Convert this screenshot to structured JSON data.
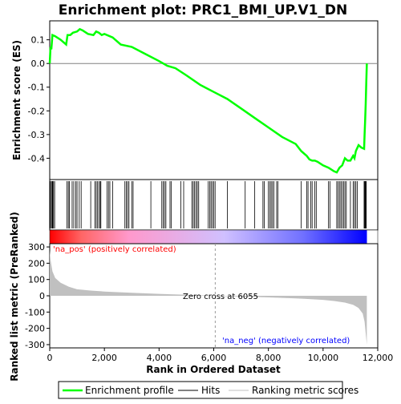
{
  "chart_data": {
    "type": "line",
    "title": "Enrichment plot: PRC1_BMI_UP.V1_DN",
    "xlabel": "Rank in Ordered Dataset",
    "xlim": [
      0,
      12000
    ],
    "x_ticks": [
      0,
      2000,
      4000,
      6000,
      8000,
      10000,
      12000
    ],
    "x_tick_labels": [
      "0",
      "2,000",
      "4,000",
      "6,000",
      "8,000",
      "10,000",
      "12,000"
    ],
    "dataset_size": 11600,
    "es_panel": {
      "ylabel": "Enrichment score (ES)",
      "ylim": [
        -0.49,
        0.18
      ],
      "y_ticks": [
        -0.4,
        -0.3,
        -0.2,
        -0.1,
        0.0,
        0.1
      ],
      "y_tick_labels": [
        "-0.4",
        "-0.3",
        "-0.2",
        "-0.1",
        "0.0",
        "0.1"
      ],
      "series": [
        {
          "name": "Enrichment profile",
          "color": "#00ff00",
          "x": [
            0,
            30,
            60,
            100,
            200,
            400,
            600,
            650,
            750,
            850,
            1000,
            1100,
            1200,
            1400,
            1600,
            1700,
            1800,
            1900,
            2000,
            2300,
            2600,
            3000,
            3500,
            4000,
            4300,
            4600,
            5000,
            5500,
            6000,
            6500,
            7000,
            7500,
            8000,
            8500,
            9000,
            9200,
            9400,
            9500,
            9600,
            9700,
            9800,
            10000,
            10200,
            10400,
            10500,
            10600,
            10700,
            10800,
            10900,
            11000,
            11100,
            11150,
            11200,
            11300,
            11400,
            11500,
            11520,
            11540,
            11560,
            11580,
            11600
          ],
          "y": [
            0.0,
            0.07,
            0.06,
            0.12,
            0.115,
            0.1,
            0.08,
            0.12,
            0.12,
            0.13,
            0.135,
            0.145,
            0.14,
            0.125,
            0.12,
            0.135,
            0.13,
            0.12,
            0.125,
            0.11,
            0.08,
            0.07,
            0.04,
            0.01,
            -0.01,
            -0.02,
            -0.05,
            -0.09,
            -0.12,
            -0.15,
            -0.19,
            -0.23,
            -0.27,
            -0.31,
            -0.34,
            -0.37,
            -0.39,
            -0.405,
            -0.41,
            -0.41,
            -0.415,
            -0.43,
            -0.44,
            -0.455,
            -0.46,
            -0.44,
            -0.43,
            -0.4,
            -0.41,
            -0.41,
            -0.39,
            -0.4,
            -0.37,
            -0.345,
            -0.355,
            -0.36,
            -0.3,
            -0.24,
            -0.17,
            -0.08,
            0.0
          ]
        }
      ]
    },
    "hits_panel": {
      "color": "#000000",
      "positions": [
        20,
        60,
        90,
        110,
        140,
        180,
        630,
        680,
        720,
        820,
        880,
        950,
        1000,
        1080,
        1150,
        1500,
        1650,
        1700,
        1750,
        1800,
        1850,
        1870,
        2100,
        2150,
        2200,
        2300,
        2750,
        2800,
        2850,
        2900,
        3000,
        3050,
        3700,
        4100,
        4150,
        4200,
        4250,
        4400,
        4450,
        4800,
        4900,
        5200,
        5250,
        5300,
        5350,
        5400,
        5450,
        5800,
        5850,
        5900,
        5950,
        6000,
        6050,
        6500,
        7150,
        7500,
        7800,
        7850,
        8000,
        8050,
        8100,
        8150,
        8200,
        8300,
        8350,
        9200,
        9400,
        9450,
        9550,
        9600,
        9700,
        9750,
        10200,
        10250,
        10500,
        10550,
        10600,
        10650,
        10700,
        10750,
        10800,
        10850,
        11000,
        11100,
        11150,
        11200,
        11250,
        11500,
        11520,
        11540,
        11560,
        11580
      ]
    },
    "ranking_bar": {
      "colors": [
        "#ff0000",
        "#ff6666",
        "#ff99cc",
        "#d0c0ff",
        "#7070ff",
        "#0000ff"
      ],
      "stops": [
        0,
        0.1,
        0.25,
        0.55,
        0.8,
        1.0
      ]
    },
    "metric_panel": {
      "ylabel": "Ranked list metric (PreRanked)",
      "ylim": [
        -320,
        320
      ],
      "y_ticks": [
        -300,
        -200,
        -100,
        0,
        100,
        200,
        300
      ],
      "y_tick_labels": [
        "-300",
        "-200",
        "-100",
        "0",
        "100",
        "200",
        "300"
      ],
      "color": "#c0c0c0",
      "x": [
        0,
        30,
        100,
        200,
        400,
        700,
        1000,
        1500,
        2000,
        3000,
        4000,
        5000,
        6055,
        7000,
        8000,
        9000,
        9500,
        10000,
        10400,
        10800,
        11100,
        11300,
        11450,
        11520,
        11560,
        11600
      ],
      "y": [
        280,
        220,
        150,
        110,
        80,
        55,
        40,
        32,
        26,
        18,
        12,
        6,
        0,
        -5,
        -10,
        -16,
        -20,
        -25,
        -32,
        -42,
        -55,
        -75,
        -110,
        -160,
        -230,
        -300
      ],
      "zero_cross_rank": 6055,
      "zero_cross_label": "Zero cross at 6055",
      "pos_label": "'na_pos' (positively correlated)",
      "pos_label_color": "#ff0000",
      "neg_label": "'na_neg' (negatively correlated)",
      "neg_label_color": "#0000ff"
    },
    "legend": {
      "entries": [
        {
          "label": "Enrichment profile",
          "color": "#00ff00"
        },
        {
          "label": "Hits",
          "color": "#000000"
        },
        {
          "label": "Ranking metric scores",
          "color": "#c0c0c0"
        }
      ]
    }
  }
}
